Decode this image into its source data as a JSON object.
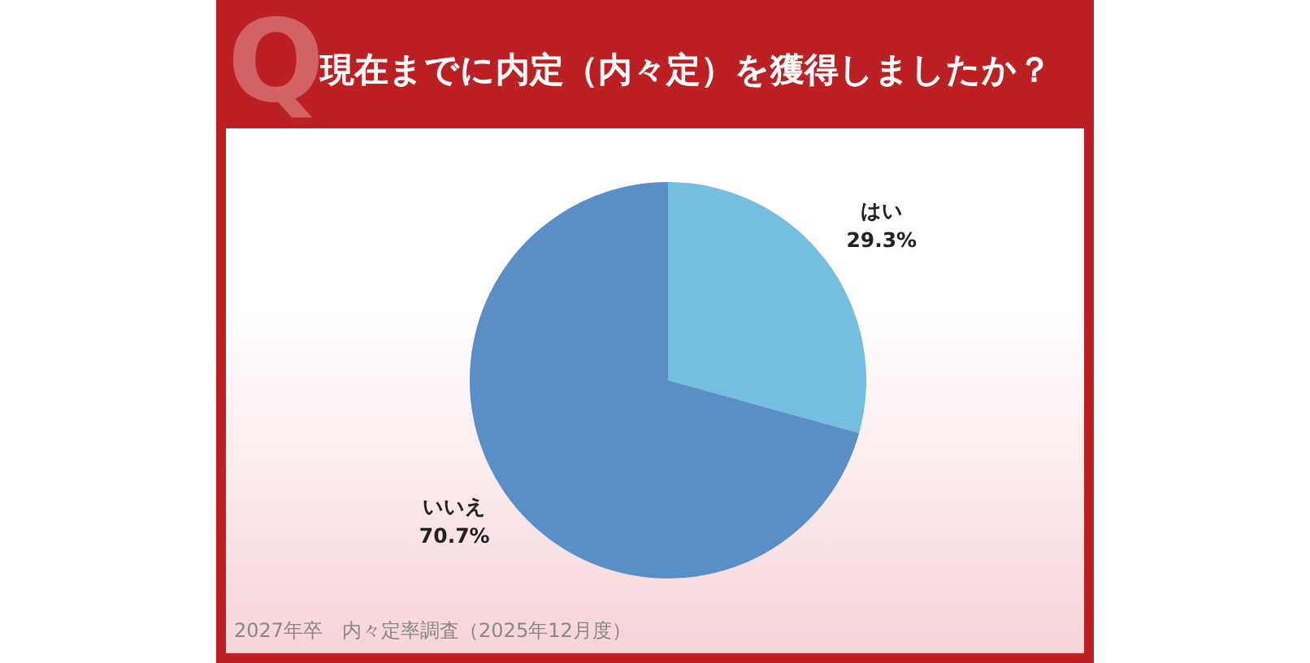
{
  "chart_data": {
    "type": "pie",
    "title": "現在までに内定（内々定）を獲得しましたか？",
    "categories": [
      "はい",
      "いいえ"
    ],
    "values": [
      29.3,
      70.7
    ],
    "colors": [
      "#74bee0",
      "#5a8ec6"
    ],
    "value_labels": [
      "29.3%",
      "70.7%"
    ],
    "annotations": [
      "Q",
      "2027年卒　内々定率調査（2025年12月度）"
    ]
  }
}
